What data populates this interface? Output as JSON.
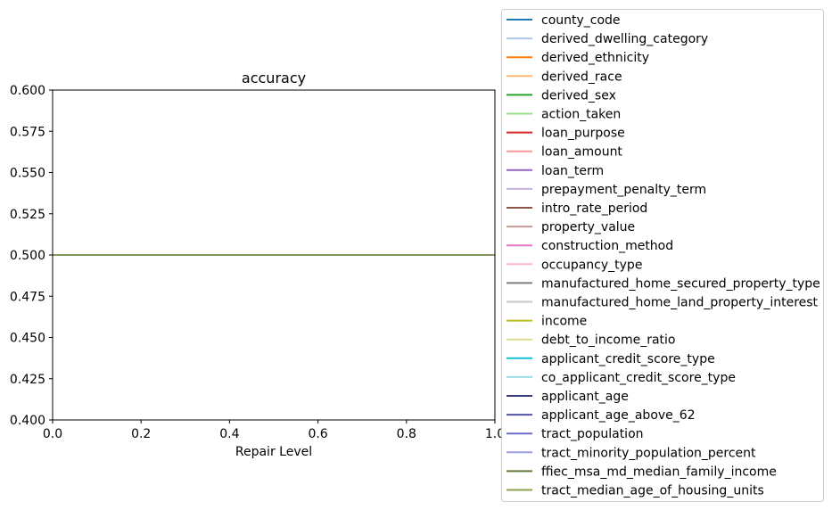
{
  "chart_data": {
    "type": "line",
    "title": "accuracy",
    "xlabel": "Repair Level",
    "ylabel": "",
    "xlim": [
      0.0,
      1.0
    ],
    "ylim": [
      0.4,
      0.6
    ],
    "xticks": [
      "0.0",
      "0.2",
      "0.4",
      "0.6",
      "0.8",
      "1.0"
    ],
    "yticks": [
      "0.400",
      "0.425",
      "0.450",
      "0.475",
      "0.500",
      "0.525",
      "0.550",
      "0.575",
      "0.600"
    ],
    "grid": false,
    "legend_position": "right, outside",
    "x": [
      0.0,
      1.0
    ],
    "series": [
      {
        "name": "county_code",
        "color": "#1f77b4",
        "values": [
          0.5,
          0.5
        ]
      },
      {
        "name": "derived_dwelling_category",
        "color": "#aec7e8",
        "values": [
          0.5,
          0.5
        ]
      },
      {
        "name": "derived_ethnicity",
        "color": "#ff7f0e",
        "values": [
          0.5,
          0.5
        ]
      },
      {
        "name": "derived_race",
        "color": "#ffbb78",
        "values": [
          0.5,
          0.5
        ]
      },
      {
        "name": "derived_sex",
        "color": "#2ca02c",
        "values": [
          0.5,
          0.5
        ]
      },
      {
        "name": "action_taken",
        "color": "#98df8a",
        "values": [
          0.5,
          0.5
        ]
      },
      {
        "name": "loan_purpose",
        "color": "#d62728",
        "values": [
          0.5,
          0.5
        ]
      },
      {
        "name": "loan_amount",
        "color": "#ff9896",
        "values": [
          0.5,
          0.5
        ]
      },
      {
        "name": "loan_term",
        "color": "#9467bd",
        "values": [
          0.5,
          0.5
        ]
      },
      {
        "name": "prepayment_penalty_term",
        "color": "#c5b0d5",
        "values": [
          0.5,
          0.5
        ]
      },
      {
        "name": "intro_rate_period",
        "color": "#8c564b",
        "values": [
          0.5,
          0.5
        ]
      },
      {
        "name": "property_value",
        "color": "#c49c94",
        "values": [
          0.5,
          0.5
        ]
      },
      {
        "name": "construction_method",
        "color": "#e377c2",
        "values": [
          0.5,
          0.5
        ]
      },
      {
        "name": "occupancy_type",
        "color": "#f7b6d2",
        "values": [
          0.5,
          0.5
        ]
      },
      {
        "name": "manufactured_home_secured_property_type",
        "color": "#7f7f7f",
        "values": [
          0.5,
          0.5
        ]
      },
      {
        "name": "manufactured_home_land_property_interest",
        "color": "#c7c7c7",
        "values": [
          0.5,
          0.5
        ]
      },
      {
        "name": "income",
        "color": "#bcbd22",
        "values": [
          0.5,
          0.5
        ]
      },
      {
        "name": "debt_to_income_ratio",
        "color": "#dbdb8d",
        "values": [
          0.5,
          0.5
        ]
      },
      {
        "name": "applicant_credit_score_type",
        "color": "#17becf",
        "values": [
          0.5,
          0.5
        ]
      },
      {
        "name": "co_applicant_credit_score_type",
        "color": "#9edae5",
        "values": [
          0.5,
          0.5
        ]
      },
      {
        "name": "applicant_age",
        "color": "#393b79",
        "values": [
          0.5,
          0.5
        ]
      },
      {
        "name": "applicant_age_above_62",
        "color": "#5254a3",
        "values": [
          0.5,
          0.5
        ]
      },
      {
        "name": "tract_population",
        "color": "#6b6ecf",
        "values": [
          0.5,
          0.5
        ]
      },
      {
        "name": "tract_minority_population_percent",
        "color": "#9c9ede",
        "values": [
          0.5,
          0.5
        ]
      },
      {
        "name": "ffiec_msa_md_median_family_income",
        "color": "#637939",
        "values": [
          0.5,
          0.5
        ]
      },
      {
        "name": "tract_median_age_of_housing_units",
        "color": "#8ca252",
        "values": [
          0.5,
          0.5
        ]
      }
    ]
  }
}
